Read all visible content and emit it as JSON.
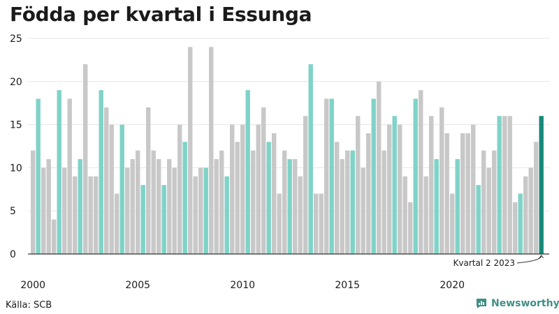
{
  "chart_data": {
    "type": "bar",
    "title": "Födda per kvartal i Essunga",
    "xlabel": "",
    "ylabel": "",
    "ylim": [
      0,
      25
    ],
    "yticks": [
      0,
      5,
      10,
      15,
      20,
      25
    ],
    "x_tick_labels": [
      "2000",
      "2005",
      "2010",
      "2015",
      "2020"
    ],
    "start_year": 2000,
    "values": [
      12,
      18,
      10,
      11,
      4,
      19,
      10,
      18,
      9,
      11,
      22,
      9,
      9,
      19,
      17,
      15,
      7,
      15,
      10,
      11,
      12,
      8,
      17,
      12,
      11,
      8,
      11,
      10,
      15,
      13,
      24,
      9,
      10,
      10,
      24,
      11,
      12,
      9,
      15,
      13,
      15,
      19,
      12,
      15,
      17,
      13,
      14,
      7,
      12,
      11,
      11,
      9,
      16,
      22,
      7,
      7,
      18,
      18,
      13,
      11,
      12,
      12,
      16,
      10,
      14,
      18,
      20,
      12,
      15,
      16,
      15,
      9,
      6,
      18,
      19,
      9,
      16,
      11,
      17,
      14,
      7,
      11,
      14,
      14,
      15,
      8,
      12,
      10,
      12,
      16,
      16,
      16,
      6,
      7,
      9,
      10,
      13,
      16
    ],
    "highlight_quarter": 2,
    "colors": {
      "default": "#c8c8c8",
      "quarter": "#7fd3c8",
      "latest": "#17897a",
      "axis": "#333333"
    },
    "annotation": "Kvartal 2 2023"
  },
  "footer": {
    "source": "Källa: SCB",
    "brand": "Newsworthy"
  }
}
